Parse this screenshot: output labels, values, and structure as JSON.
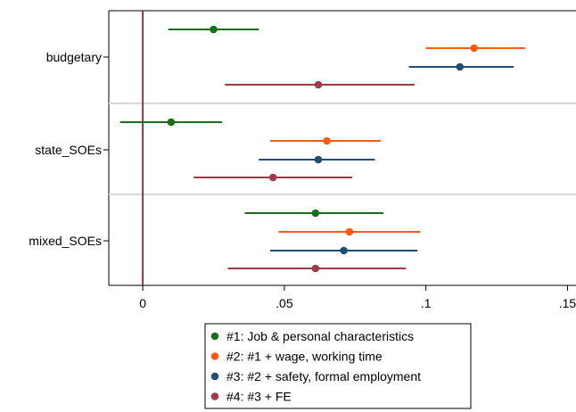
{
  "chart_data": {
    "type": "scatter",
    "subtype": "coefficient-plot-with-confidence-intervals",
    "orientation": "horizontal",
    "categories": [
      "budgetary",
      "state_SOEs",
      "mixed_SOEs"
    ],
    "xlim": [
      -0.012,
      0.153
    ],
    "xticks": [
      0,
      0.05,
      0.1,
      0.15
    ],
    "xtick_labels": [
      "0",
      ".05",
      ".1",
      ".15"
    ],
    "reference_line": {
      "x": 0,
      "color": "#990033"
    },
    "grid": "horizontal separators between categories",
    "legend_position": "bottom-center",
    "series": [
      {
        "name": "#1: Job & personal characteristics",
        "color": "#1a6e1a",
        "values": [
          {
            "category": "budgetary",
            "estimate": 0.025,
            "ci": [
              0.009,
              0.041
            ]
          },
          {
            "category": "state_SOEs",
            "estimate": 0.01,
            "ci": [
              -0.008,
              0.028
            ]
          },
          {
            "category": "mixed_SOEs",
            "estimate": 0.061,
            "ci": [
              0.036,
              0.085
            ]
          }
        ]
      },
      {
        "name": "#2: #1 + wage, working time",
        "color": "#ff5a14",
        "values": [
          {
            "category": "budgetary",
            "estimate": 0.117,
            "ci": [
              0.1,
              0.135
            ]
          },
          {
            "category": "state_SOEs",
            "estimate": 0.065,
            "ci": [
              0.045,
              0.084
            ]
          },
          {
            "category": "mixed_SOEs",
            "estimate": 0.073,
            "ci": [
              0.048,
              0.098
            ]
          }
        ]
      },
      {
        "name": "#3: #2 + safety, formal employment",
        "color": "#1f4e79",
        "values": [
          {
            "category": "budgetary",
            "estimate": 0.112,
            "ci": [
              0.094,
              0.131
            ]
          },
          {
            "category": "state_SOEs",
            "estimate": 0.062,
            "ci": [
              0.041,
              0.082
            ]
          },
          {
            "category": "mixed_SOEs",
            "estimate": 0.071,
            "ci": [
              0.045,
              0.097
            ]
          }
        ]
      },
      {
        "name": "#4: #3 + FE",
        "color": "#9e3a4a",
        "values": [
          {
            "category": "budgetary",
            "estimate": 0.062,
            "ci": [
              0.029,
              0.096
            ]
          },
          {
            "category": "state_SOEs",
            "estimate": 0.046,
            "ci": [
              0.018,
              0.074
            ]
          },
          {
            "category": "mixed_SOEs",
            "estimate": 0.061,
            "ci": [
              0.03,
              0.093
            ]
          }
        ]
      }
    ]
  }
}
